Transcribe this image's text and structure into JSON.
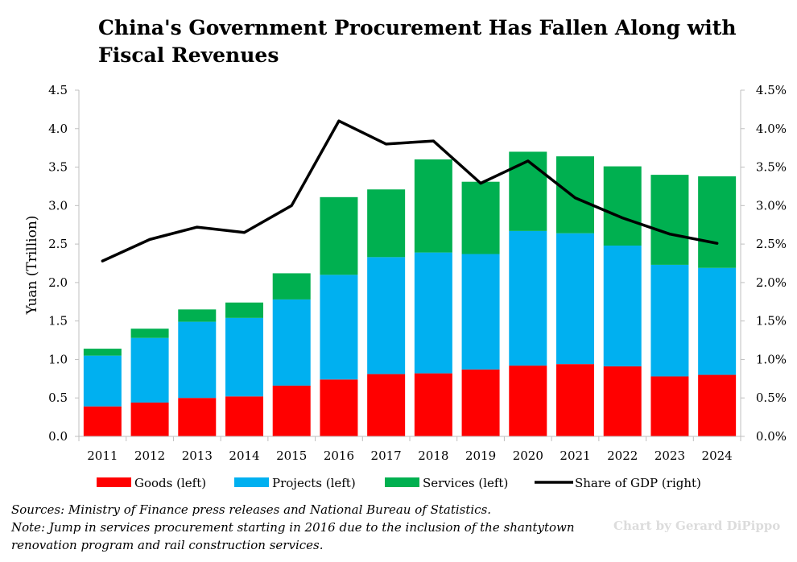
{
  "chart_data": {
    "type": "bar",
    "stacked": true,
    "title_lines": [
      "China's Government Procurement Has Fallen Along with",
      "Fiscal Revenues"
    ],
    "categories": [
      "2011",
      "2012",
      "2013",
      "2014",
      "2015",
      "2016",
      "2017",
      "2018",
      "2019",
      "2020",
      "2021",
      "2022",
      "2023",
      "2024"
    ],
    "series": [
      {
        "name": "Goods (left)",
        "color": "#ff0000",
        "axis": "left",
        "values": [
          0.39,
          0.44,
          0.5,
          0.52,
          0.66,
          0.74,
          0.81,
          0.82,
          0.87,
          0.92,
          0.94,
          0.91,
          0.78,
          0.8
        ]
      },
      {
        "name": "Projects (left)",
        "color": "#00b0f0",
        "axis": "left",
        "values": [
          0.66,
          0.84,
          0.99,
          1.02,
          1.12,
          1.36,
          1.52,
          1.57,
          1.5,
          1.75,
          1.7,
          1.57,
          1.45,
          1.39
        ]
      },
      {
        "name": "Services (left)",
        "color": "#00b050",
        "axis": "left",
        "values": [
          0.09,
          0.12,
          0.16,
          0.2,
          0.34,
          1.01,
          0.88,
          1.21,
          0.94,
          1.03,
          1.0,
          1.03,
          1.17,
          1.19
        ]
      },
      {
        "name": "Share of GDP (right)",
        "type": "line",
        "color": "#000000",
        "axis": "right",
        "values": [
          2.28,
          2.56,
          2.72,
          2.65,
          3.0,
          4.1,
          3.8,
          3.84,
          3.29,
          3.58,
          3.1,
          2.84,
          2.63,
          2.51
        ]
      }
    ],
    "ylabel": "Yuan (Trillion)",
    "ylim": [
      0,
      4.5
    ],
    "y_ticks": [
      "0.0",
      "0.5",
      "1.0",
      "1.5",
      "2.0",
      "2.5",
      "3.0",
      "3.5",
      "4.0",
      "4.5"
    ],
    "y2lim": [
      0,
      4.5
    ],
    "y2_ticks": [
      "0.0%",
      "0.5%",
      "1.0%",
      "1.5%",
      "2.0%",
      "2.5%",
      "3.0%",
      "3.5%",
      "4.0%",
      "4.5%"
    ],
    "grid": false,
    "legend_position": "bottom"
  },
  "notes": {
    "sources": "Sources: Ministry of Finance press releases and National Bureau of Statistics.",
    "note_line1": "Note: Jump in services procurement starting in 2016 due to the inclusion of the shantytown",
    "note_line2": "renovation program and rail construction services."
  },
  "credit": "Chart by Gerard DiPippo"
}
